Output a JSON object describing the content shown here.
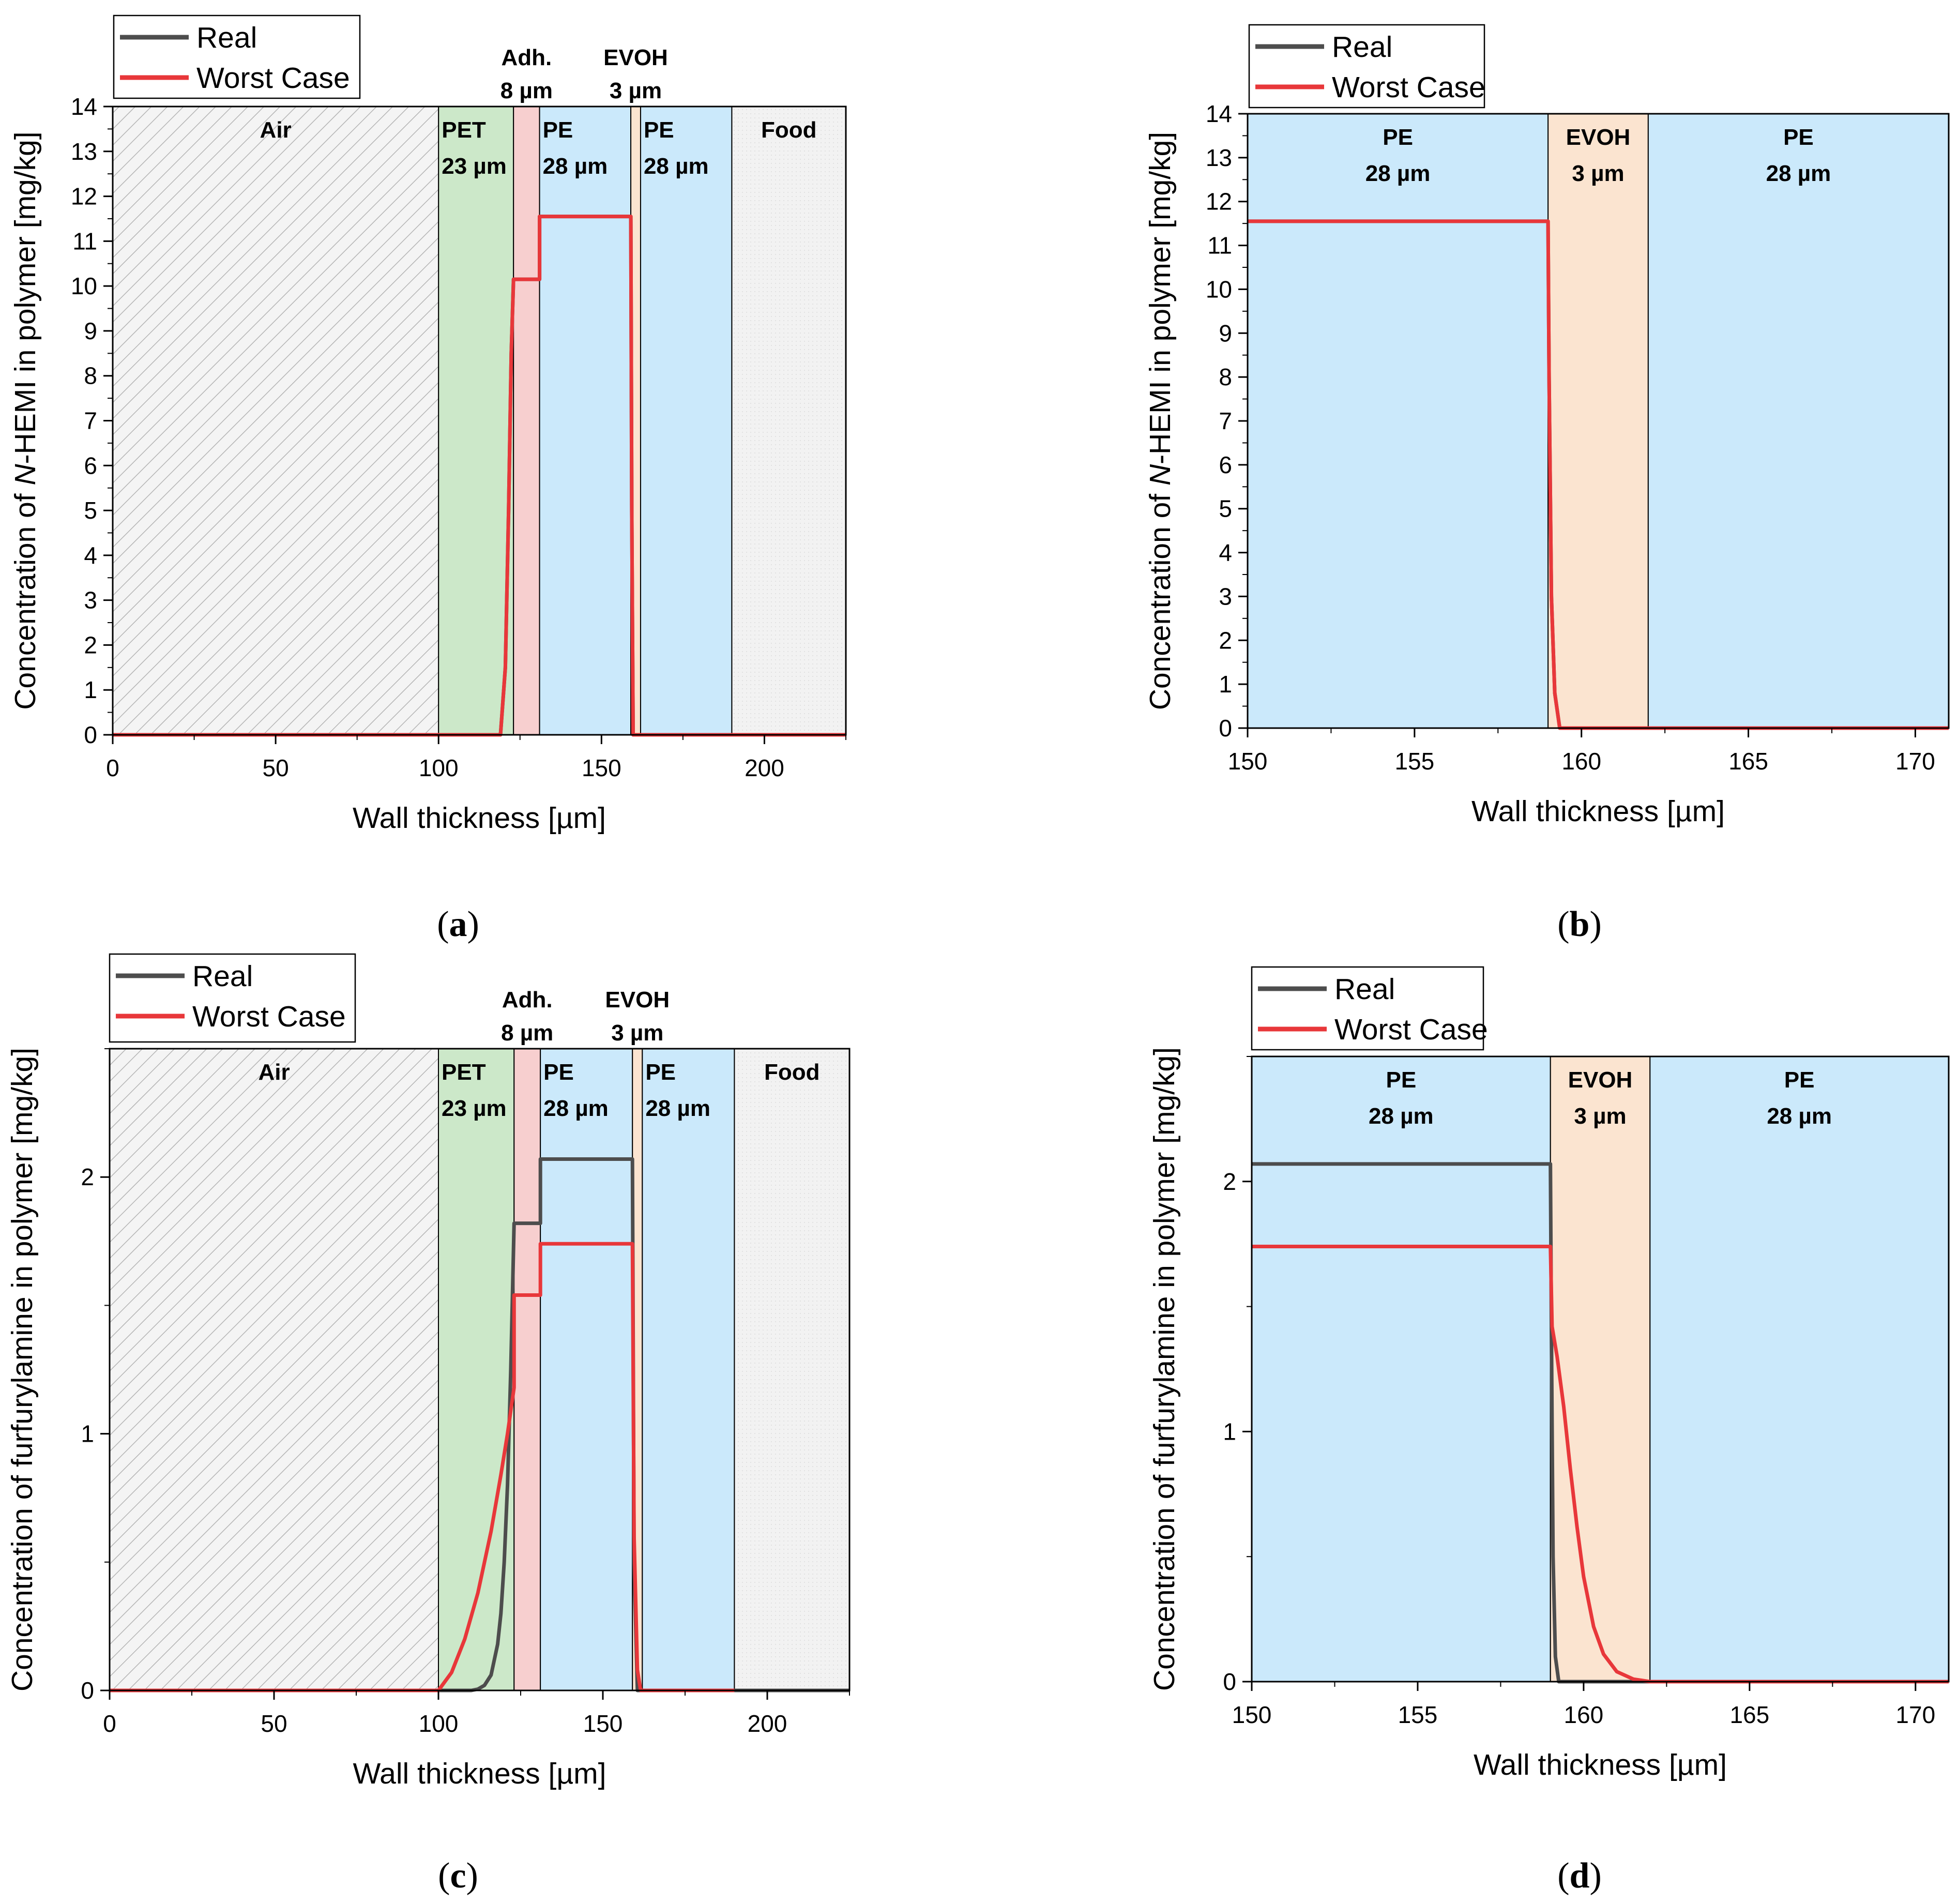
{
  "colors": {
    "real": "#4d4d4d",
    "worst_case": "#e8373a",
    "air": "#f4f4f4",
    "pet": "#cce8c9",
    "adhesive": "#f7cfcf",
    "pe": "#cbe9fb",
    "evoh": "#fbe4d0",
    "food": "#f2f2f2",
    "hatch": "#b5b5b5"
  },
  "chart_data": [
    {
      "id": "a",
      "type": "line",
      "caption_letter": "a",
      "xlabel": "Wall thickness [µm]",
      "ylabel_prefix": "Concentration of ",
      "ylabel_italic": "N",
      "ylabel_suffix": "-HEMI in polymer [mg/kg]",
      "xlim": [
        0,
        225
      ],
      "ylim": [
        0,
        14
      ],
      "xticks": [
        0,
        50,
        100,
        150,
        200
      ],
      "yticks": [
        0,
        1,
        2,
        3,
        4,
        5,
        6,
        7,
        8,
        9,
        10,
        11,
        12,
        13,
        14
      ],
      "x_minor_step": 25,
      "y_minor_step": 0.5,
      "legend": {
        "placement": "top-left",
        "entries": [
          "Real",
          "Worst Case"
        ]
      },
      "layers": [
        {
          "kind": "air",
          "x0": 0,
          "x1": 100,
          "name": "Air",
          "thickness": ""
        },
        {
          "kind": "pet",
          "x0": 100,
          "x1": 123,
          "name": "PET",
          "thickness": "23 µm"
        },
        {
          "kind": "adhesive",
          "x0": 123,
          "x1": 131,
          "name": "Adh.",
          "thickness": "8 µm",
          "label_above": true
        },
        {
          "kind": "pe",
          "x0": 131,
          "x1": 159,
          "name": "PE",
          "thickness": "28 µm"
        },
        {
          "kind": "evoh",
          "x0": 159,
          "x1": 162,
          "name": "EVOH",
          "thickness": "3 µm",
          "label_above": true
        },
        {
          "kind": "pe",
          "x0": 162,
          "x1": 190,
          "name": "PE",
          "thickness": "28 µm"
        },
        {
          "kind": "food",
          "x0": 190,
          "x1": 225,
          "name": "Food",
          "thickness": ""
        }
      ],
      "series": [
        {
          "name": "Real",
          "x": [
            0,
            119,
            120.5,
            121.5,
            122.3,
            123,
            131,
            131,
            159,
            159.3,
            159.7,
            225
          ],
          "y": [
            0,
            0,
            1.5,
            5.0,
            8.5,
            10.15,
            10.15,
            11.55,
            11.55,
            5.0,
            0,
            0
          ]
        },
        {
          "name": "Worst Case",
          "x": [
            0,
            119,
            120.5,
            121.5,
            122.3,
            123,
            131,
            131,
            159,
            159.3,
            159.7,
            225
          ],
          "y": [
            0,
            0,
            1.5,
            5.0,
            8.5,
            10.15,
            10.15,
            11.55,
            11.55,
            5.0,
            0,
            0
          ]
        }
      ]
    },
    {
      "id": "b",
      "type": "line",
      "caption_letter": "b",
      "xlabel": "Wall thickness [µm]",
      "ylabel_prefix": "Concentration of ",
      "ylabel_italic": "N",
      "ylabel_suffix": "-HEMI in polymer [mg/kg]",
      "xlim": [
        150,
        171
      ],
      "ylim": [
        0,
        14
      ],
      "xticks": [
        150,
        155,
        160,
        165,
        170
      ],
      "yticks": [
        0,
        1,
        2,
        3,
        4,
        5,
        6,
        7,
        8,
        9,
        10,
        11,
        12,
        13,
        14
      ],
      "x_minor_step": 2.5,
      "y_minor_step": 0.5,
      "legend": {
        "placement": "top-left",
        "entries": [
          "Real",
          "Worst Case"
        ]
      },
      "layers": [
        {
          "kind": "pe",
          "x0": 150,
          "x1": 159,
          "name": "PE",
          "thickness": "28 µm"
        },
        {
          "kind": "evoh",
          "x0": 159,
          "x1": 162,
          "name": "EVOH",
          "thickness": "3 µm"
        },
        {
          "kind": "pe",
          "x0": 162,
          "x1": 171,
          "name": "PE",
          "thickness": "28 µm"
        }
      ],
      "series": [
        {
          "name": "Real",
          "x": [
            150,
            159,
            159.03,
            159.1,
            159.2,
            159.35,
            171
          ],
          "y": [
            11.55,
            11.55,
            8.0,
            3.0,
            0.8,
            0,
            0
          ]
        },
        {
          "name": "Worst Case",
          "x": [
            150,
            159,
            159.03,
            159.1,
            159.2,
            159.35,
            171
          ],
          "y": [
            11.55,
            11.55,
            8.0,
            3.0,
            0.8,
            0,
            0
          ]
        }
      ]
    },
    {
      "id": "c",
      "type": "line",
      "caption_letter": "c",
      "xlabel": "Wall thickness [µm]",
      "ylabel_prefix": "Concentration of furfurylamine in polymer [mg/kg]",
      "ylabel_italic": "",
      "ylabel_suffix": "",
      "xlim": [
        0,
        225
      ],
      "ylim": [
        0,
        2.5
      ],
      "xticks": [
        0,
        50,
        100,
        150,
        200
      ],
      "yticks": [
        0,
        1,
        2
      ],
      "x_minor_step": 25,
      "y_minor_step": 0.5,
      "legend": {
        "placement": "top-left",
        "entries": [
          "Real",
          "Worst Case"
        ]
      },
      "layers": [
        {
          "kind": "air",
          "x0": 0,
          "x1": 100,
          "name": "Air",
          "thickness": ""
        },
        {
          "kind": "pet",
          "x0": 100,
          "x1": 123,
          "name": "PET",
          "thickness": "23 µm"
        },
        {
          "kind": "adhesive",
          "x0": 123,
          "x1": 131,
          "name": "Adh.",
          "thickness": "8 µm",
          "label_above": true
        },
        {
          "kind": "pe",
          "x0": 131,
          "x1": 159,
          "name": "PE",
          "thickness": "28 µm"
        },
        {
          "kind": "evoh",
          "x0": 159,
          "x1": 162,
          "name": "EVOH",
          "thickness": "3 µm",
          "label_above": true
        },
        {
          "kind": "pe",
          "x0": 162,
          "x1": 190,
          "name": "PE",
          "thickness": "28 µm"
        },
        {
          "kind": "food",
          "x0": 190,
          "x1": 225,
          "name": "Food",
          "thickness": ""
        }
      ],
      "series": [
        {
          "name": "Real",
          "x": [
            0,
            110,
            112,
            114,
            116,
            118,
            119,
            120,
            121,
            122,
            123,
            123,
            131,
            131,
            159,
            159.5,
            160.5,
            225
          ],
          "y": [
            0,
            0,
            0.005,
            0.02,
            0.06,
            0.18,
            0.3,
            0.5,
            0.8,
            1.25,
            1.82,
            1.82,
            1.82,
            2.07,
            2.07,
            0.5,
            0,
            0
          ]
        },
        {
          "name": "Worst Case",
          "x": [
            0,
            100,
            104,
            108,
            112,
            116,
            119,
            121,
            123,
            123,
            131,
            131,
            159,
            159.5,
            160.5,
            161.5,
            190
          ],
          "y": [
            0,
            0,
            0.07,
            0.2,
            0.38,
            0.62,
            0.84,
            1.0,
            1.18,
            1.54,
            1.54,
            1.74,
            1.74,
            0.6,
            0.08,
            0,
            0
          ]
        }
      ]
    },
    {
      "id": "d",
      "type": "line",
      "caption_letter": "d",
      "xlabel": "Wall thickness [µm]",
      "ylabel_prefix": "Concentration of furfurylamine in polymer [mg/kg]",
      "ylabel_italic": "",
      "ylabel_suffix": "",
      "xlim": [
        150,
        171
      ],
      "ylim": [
        0,
        2.5
      ],
      "xticks": [
        150,
        155,
        160,
        165,
        170
      ],
      "yticks": [
        0,
        1,
        2
      ],
      "x_minor_step": 2.5,
      "y_minor_step": 0.5,
      "legend": {
        "placement": "top-left",
        "entries": [
          "Real",
          "Worst Case"
        ]
      },
      "layers": [
        {
          "kind": "pe",
          "x0": 150,
          "x1": 159,
          "name": "PE",
          "thickness": "28 µm"
        },
        {
          "kind": "evoh",
          "x0": 159,
          "x1": 162,
          "name": "EVOH",
          "thickness": "3 µm"
        },
        {
          "kind": "pe",
          "x0": 162,
          "x1": 171,
          "name": "PE",
          "thickness": "28 µm"
        }
      ],
      "series": [
        {
          "name": "Real",
          "x": [
            150,
            159,
            159.03,
            159.08,
            159.15,
            159.25,
            171
          ],
          "y": [
            2.07,
            2.07,
            1.4,
            0.5,
            0.1,
            0,
            0
          ]
        },
        {
          "name": "Worst Case",
          "x": [
            150,
            159,
            159.05,
            159.2,
            159.4,
            159.6,
            159.8,
            160,
            160.3,
            160.6,
            161,
            161.5,
            162,
            171
          ],
          "y": [
            1.74,
            1.74,
            1.42,
            1.3,
            1.1,
            0.85,
            0.62,
            0.42,
            0.22,
            0.11,
            0.04,
            0.01,
            0,
            0
          ]
        }
      ]
    }
  ]
}
